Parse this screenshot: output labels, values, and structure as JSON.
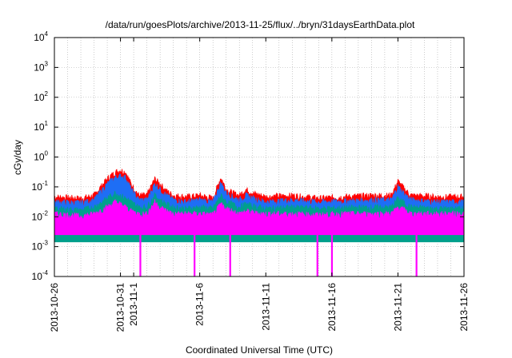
{
  "chart_data": {
    "type": "area",
    "title": "/data/run/goesPlots/archive/2013-11-25/flux/../bryn/31daysEarthData.plot",
    "xlabel": "Coordinated Universal Time (UTC)",
    "ylabel": "cGy/day",
    "yscale": "log",
    "ylim": [
      0.0001,
      10000
    ],
    "xlim": [
      "2013-10-26",
      "2013-11-26"
    ],
    "grid": true,
    "legend": "none",
    "y_ticks": [
      {
        "value": 0.0001,
        "base": "10",
        "exp": "-4"
      },
      {
        "value": 0.001,
        "base": "10",
        "exp": "-3"
      },
      {
        "value": 0.01,
        "base": "10",
        "exp": "-2"
      },
      {
        "value": 0.1,
        "base": "10",
        "exp": "-1"
      },
      {
        "value": 1,
        "base": "10",
        "exp": "0"
      },
      {
        "value": 10,
        "base": "10",
        "exp": "1"
      },
      {
        "value": 100,
        "base": "10",
        "exp": "2"
      },
      {
        "value": 1000,
        "base": "10",
        "exp": "3"
      },
      {
        "value": 10000,
        "base": "10",
        "exp": "4"
      }
    ],
    "x_ticks": [
      {
        "day": 0,
        "label": "2013-10-26"
      },
      {
        "day": 5,
        "label": "2013-10-31"
      },
      {
        "day": 6,
        "label": "2013-11-1"
      },
      {
        "day": 11,
        "label": "2013-11-6"
      },
      {
        "day": 16,
        "label": "2013-11-11"
      },
      {
        "day": 21,
        "label": "2013-11-16"
      },
      {
        "day": 26,
        "label": "2013-11-21"
      },
      {
        "day": 31,
        "label": "2013-11-26"
      }
    ],
    "series": [
      {
        "color": "#ff0000",
        "points": [
          [
            0,
            0.045
          ],
          [
            2,
            0.04
          ],
          [
            3,
            0.05
          ],
          [
            4,
            0.18
          ],
          [
            4.6,
            0.3
          ],
          [
            5,
            0.35
          ],
          [
            5.4,
            0.3
          ],
          [
            5.8,
            0.12
          ],
          [
            6.4,
            0.05
          ],
          [
            7,
            0.05
          ],
          [
            7.6,
            0.18
          ],
          [
            8,
            0.12
          ],
          [
            8.5,
            0.07
          ],
          [
            9,
            0.05
          ],
          [
            10,
            0.045
          ],
          [
            11,
            0.05
          ],
          [
            12,
            0.04
          ],
          [
            12.6,
            0.2
          ],
          [
            13,
            0.08
          ],
          [
            13.5,
            0.06
          ],
          [
            14,
            0.05
          ],
          [
            14.5,
            0.08
          ],
          [
            15,
            0.06
          ],
          [
            16,
            0.045
          ],
          [
            18,
            0.05
          ],
          [
            20,
            0.04
          ],
          [
            22,
            0.045
          ],
          [
            24,
            0.05
          ],
          [
            25.5,
            0.05
          ],
          [
            26,
            0.15
          ],
          [
            26.5,
            0.08
          ],
          [
            27,
            0.05
          ],
          [
            29,
            0.045
          ],
          [
            31,
            0.045
          ]
        ]
      },
      {
        "color": "#1e6ef5",
        "points": [
          [
            0,
            0.03
          ],
          [
            2,
            0.028
          ],
          [
            3,
            0.035
          ],
          [
            4,
            0.12
          ],
          [
            4.6,
            0.2
          ],
          [
            5,
            0.22
          ],
          [
            5.4,
            0.2
          ],
          [
            5.8,
            0.08
          ],
          [
            6.4,
            0.035
          ],
          [
            7,
            0.035
          ],
          [
            7.6,
            0.12
          ],
          [
            8,
            0.08
          ],
          [
            8.5,
            0.05
          ],
          [
            9,
            0.035
          ],
          [
            10,
            0.03
          ],
          [
            11,
            0.035
          ],
          [
            12,
            0.03
          ],
          [
            12.6,
            0.13
          ],
          [
            13,
            0.06
          ],
          [
            13.5,
            0.045
          ],
          [
            14,
            0.035
          ],
          [
            14.5,
            0.05
          ],
          [
            15,
            0.04
          ],
          [
            16,
            0.03
          ],
          [
            18,
            0.035
          ],
          [
            20,
            0.03
          ],
          [
            22,
            0.032
          ],
          [
            24,
            0.035
          ],
          [
            25.5,
            0.035
          ],
          [
            26,
            0.1
          ],
          [
            26.5,
            0.055
          ],
          [
            27,
            0.035
          ],
          [
            29,
            0.03
          ],
          [
            31,
            0.03
          ]
        ]
      },
      {
        "color": "#00a08c",
        "points": [
          [
            0,
            0.018
          ],
          [
            2,
            0.016
          ],
          [
            3,
            0.02
          ],
          [
            4,
            0.04
          ],
          [
            4.6,
            0.06
          ],
          [
            5,
            0.05
          ],
          [
            5.4,
            0.04
          ],
          [
            5.8,
            0.03
          ],
          [
            6.4,
            0.02
          ],
          [
            7,
            0.02
          ],
          [
            7.6,
            0.05
          ],
          [
            8,
            0.035
          ],
          [
            8.5,
            0.025
          ],
          [
            9,
            0.02
          ],
          [
            10,
            0.018
          ],
          [
            11,
            0.02
          ],
          [
            12,
            0.018
          ],
          [
            12.6,
            0.05
          ],
          [
            13,
            0.03
          ],
          [
            13.5,
            0.025
          ],
          [
            14,
            0.02
          ],
          [
            14.5,
            0.025
          ],
          [
            15,
            0.022
          ],
          [
            16,
            0.018
          ],
          [
            18,
            0.02
          ],
          [
            20,
            0.018
          ],
          [
            22,
            0.019
          ],
          [
            24,
            0.02
          ],
          [
            25.5,
            0.02
          ],
          [
            26,
            0.04
          ],
          [
            26.5,
            0.028
          ],
          [
            27,
            0.02
          ],
          [
            29,
            0.018
          ],
          [
            31,
            0.018
          ]
        ]
      },
      {
        "color": "#ff00ff",
        "points": [
          [
            0,
            0.012
          ],
          [
            2,
            0.01
          ],
          [
            3,
            0.012
          ],
          [
            4,
            0.02
          ],
          [
            4.6,
            0.03
          ],
          [
            5,
            0.025
          ],
          [
            5.4,
            0.02
          ],
          [
            5.8,
            0.015
          ],
          [
            6.4,
            0.012
          ],
          [
            7,
            0.012
          ],
          [
            7.6,
            0.03
          ],
          [
            8,
            0.02
          ],
          [
            8.5,
            0.015
          ],
          [
            9,
            0.012
          ],
          [
            10,
            0.012
          ],
          [
            11,
            0.012
          ],
          [
            12,
            0.011
          ],
          [
            12.6,
            0.025
          ],
          [
            13,
            0.018
          ],
          [
            13.5,
            0.015
          ],
          [
            14,
            0.012
          ],
          [
            14.5,
            0.015
          ],
          [
            15,
            0.013
          ],
          [
            16,
            0.012
          ],
          [
            18,
            0.012
          ],
          [
            20,
            0.011
          ],
          [
            22,
            0.012
          ],
          [
            24,
            0.012
          ],
          [
            25.5,
            0.012
          ],
          [
            26,
            0.02
          ],
          [
            26.5,
            0.016
          ],
          [
            27,
            0.012
          ],
          [
            29,
            0.012
          ],
          [
            31,
            0.012
          ]
        ],
        "floor": 0.0025,
        "dropouts": [
          6.5,
          10.6,
          13.3,
          19.9,
          21.0,
          27.4
        ]
      }
    ]
  }
}
